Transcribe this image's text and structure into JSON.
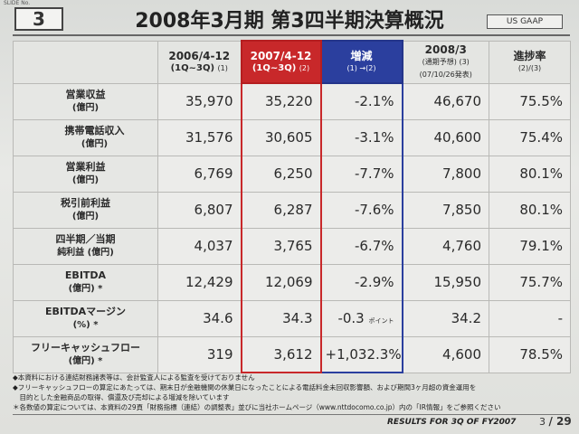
{
  "slide_no": "SLIDE No.",
  "section_number": "3",
  "title": "2008年3月期 第3四半期決算概況",
  "gaap_label": "US GAAP",
  "columns": [
    {
      "line1": "2006/4-12",
      "line2": "(1Q~3Q)",
      "tag": "(1)"
    },
    {
      "line1": "2007/4-12",
      "line2": "(1Q~3Q)",
      "tag": "(2)"
    },
    {
      "line1": "増減",
      "line2": "(1) →(2)",
      "tag": ""
    },
    {
      "line1": "2008/3",
      "line2": "(通期予想)",
      "tag": "(3)",
      "line3": "(07/10/26発表)"
    },
    {
      "line1": "進捗率",
      "line2": "(2)/(3)",
      "tag": ""
    }
  ],
  "rows": [
    {
      "label1": "営業収益",
      "label2": "(億円)",
      "v1": "35,970",
      "v2": "35,220",
      "chg": "-2.1%",
      "v3": "46,670",
      "rate": "75.5%"
    },
    {
      "label1": "携帯電話収入",
      "label2": "(億円)",
      "v1": "31,576",
      "v2": "30,605",
      "chg": "-3.1%",
      "v3": "40,600",
      "rate": "75.4%"
    },
    {
      "label1": "営業利益",
      "label2": "(億円)",
      "v1": "6,769",
      "v2": "6,250",
      "chg": "-7.7%",
      "v3": "7,800",
      "rate": "80.1%"
    },
    {
      "label1": "税引前利益",
      "label2": "(億円)",
      "v1": "6,807",
      "v2": "6,287",
      "chg": "-7.6%",
      "v3": "7,850",
      "rate": "80.1%"
    },
    {
      "label1": "四半期／当期",
      "label2": "純利益 (億円)",
      "v1": "4,037",
      "v2": "3,765",
      "chg": "-6.7%",
      "v3": "4,760",
      "rate": "79.1%"
    },
    {
      "label1": "EBITDA",
      "label2": "(億円) *",
      "v1": "12,429",
      "v2": "12,069",
      "chg": "-2.9%",
      "v3": "15,950",
      "rate": "75.7%"
    },
    {
      "label1": "EBITDAマージン",
      "label2": "(%) *",
      "v1": "34.6",
      "v2": "34.3",
      "chg": "-0.3",
      "chg_unit": "ポイント",
      "v3": "34.2",
      "rate": "-"
    },
    {
      "label1": "フリーキャッシュフロー",
      "label2": "(億円) *",
      "v1": "319",
      "v2": "3,612",
      "chg": "+1,032.3%",
      "v3": "4,600",
      "rate": "78.5%"
    }
  ],
  "notes": [
    "◆本資料における連結財務諸表等は、会計監査人による監査を受けておりません",
    "◆フリーキャッシュフローの算定にあたっては、期末日が金融機関の休業日になったことによる電話料金未回収影響額、および期間3ヶ月超の資金運用を",
    "　目的とした金融商品の取得、償還及び売却による増減を除いています",
    "＊各数値の算定については、本資料の29頁「財務指標（連結）の調整表」並びに当社ホームページ（www.nttdocomo.co.jp）内の「IR情報」をご参照ください"
  ],
  "footer": "RESULTS FOR 3Q OF FY2007",
  "page_current": "3",
  "page_total": "/ 29"
}
